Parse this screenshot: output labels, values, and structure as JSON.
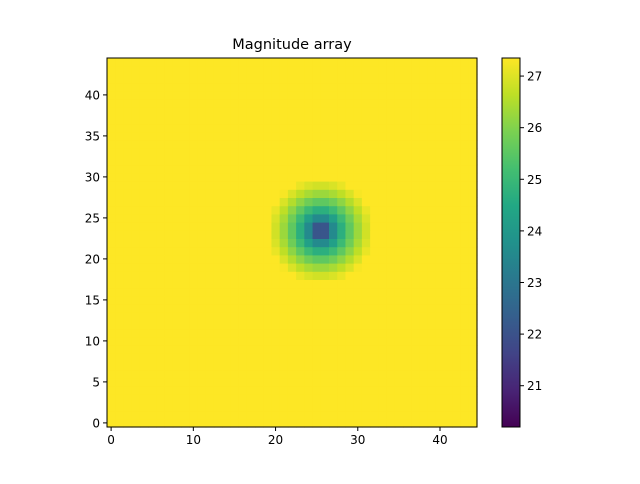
{
  "chart_data": {
    "type": "heatmap",
    "title": "Magnitude array",
    "xlabel": "",
    "ylabel": "",
    "grid": false,
    "colormap": "viridis",
    "rows": 45,
    "cols": 45,
    "x_range": [
      -0.5,
      44.5
    ],
    "y_range": [
      -0.5,
      44.5
    ],
    "x_ticks": [
      0,
      10,
      20,
      30,
      40
    ],
    "x_tick_labels": [
      "0",
      "10",
      "20",
      "30",
      "40"
    ],
    "y_ticks": [
      0,
      5,
      10,
      15,
      20,
      25,
      30,
      35,
      40
    ],
    "y_tick_labels": [
      "0",
      "5",
      "10",
      "15",
      "20",
      "25",
      "30",
      "35",
      "40"
    ],
    "minimum_cell": [
      26,
      24
    ],
    "value_range": [
      20.2,
      27.35
    ],
    "colorbar_ticks": [
      21,
      22,
      23,
      24,
      25,
      26,
      27
    ],
    "colorbar_tick_labels": [
      "21",
      "22",
      "23",
      "24",
      "25",
      "26",
      "27"
    ]
  }
}
